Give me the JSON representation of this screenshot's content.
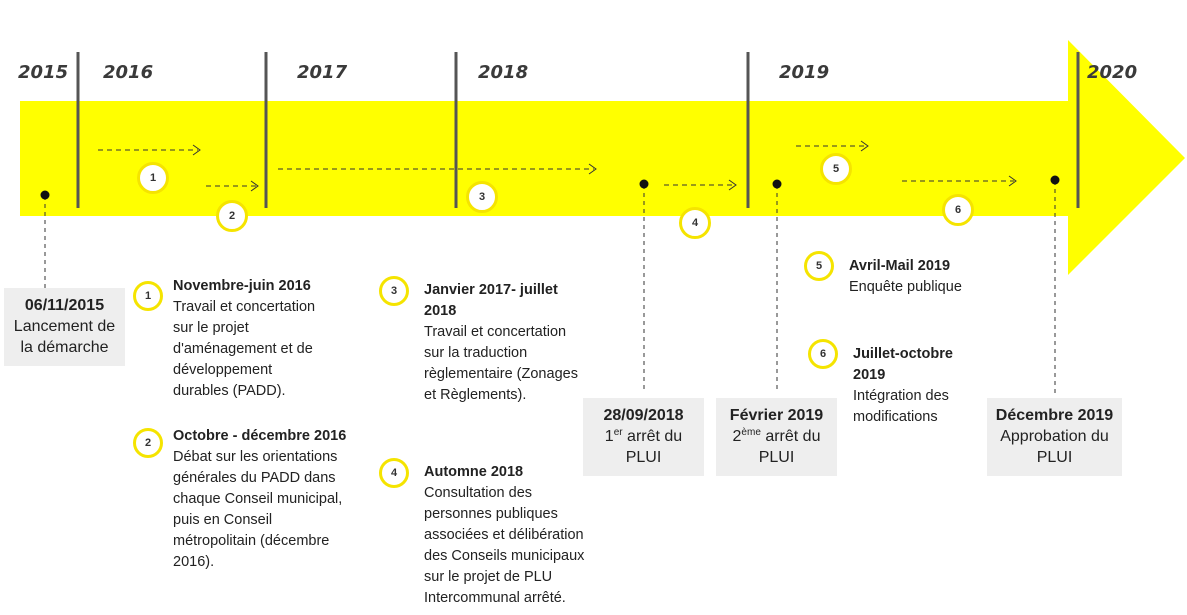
{
  "years": [
    "2015",
    "2016",
    "2017",
    "2018",
    "2019",
    "2020"
  ],
  "phase_markers": [
    "1",
    "2",
    "3",
    "4",
    "5",
    "6"
  ],
  "milestones": [
    {
      "date": "06/11/2015",
      "line1": "Lancement de",
      "line2": "la démarche"
    },
    {
      "date": "28/09/2018",
      "line1_num": "1",
      "line1_sup": "er",
      "line1_rest": " arrêt du",
      "line2": "PLUI"
    },
    {
      "date": "Février 2019",
      "line1_num": "2",
      "line1_sup": "ème",
      "line1_rest": " arrêt du",
      "line2": "PLUI"
    },
    {
      "date": "Décembre 2019",
      "line1": "Approbation du",
      "line2": "PLUI"
    }
  ],
  "legend": [
    {
      "num": "1",
      "title": "Novembre-juin 2016",
      "text": [
        "Travail et concertation",
        "sur le projet",
        "d'aménagement et de",
        "développement",
        "durables (PADD)."
      ]
    },
    {
      "num": "2",
      "title": "Octobre - décembre 2016",
      "text": [
        "Débat sur les orientations",
        "générales du PADD dans",
        "chaque Conseil municipal,",
        "puis en Conseil",
        "métropolitain (décembre",
        "2016)."
      ]
    },
    {
      "num": "3",
      "title": "Janvier 2017- juillet",
      "title2": "2018",
      "text": [
        "Travail et concertation",
        "sur la traduction",
        "règlementaire (Zonages",
        "et Règlements)."
      ]
    },
    {
      "num": "4",
      "title": "Automne 2018",
      "text": [
        "Consultation des",
        "personnes publiques",
        "associées et délibération",
        "des Conseils municipaux",
        "sur le projet de PLU",
        "Intercommunal arrêté."
      ]
    },
    {
      "num": "5",
      "title": "Avril-Mail 2019",
      "text": [
        "Enquête publique"
      ]
    },
    {
      "num": "6",
      "title": "Juillet-octobre",
      "title2": "2019",
      "text": [
        "Intégration des",
        "modifications"
      ]
    }
  ],
  "colors": {
    "arrow": "#ffff00",
    "circle_border": "#f5e400",
    "divider": "#555555",
    "box": "#eeeeee"
  }
}
